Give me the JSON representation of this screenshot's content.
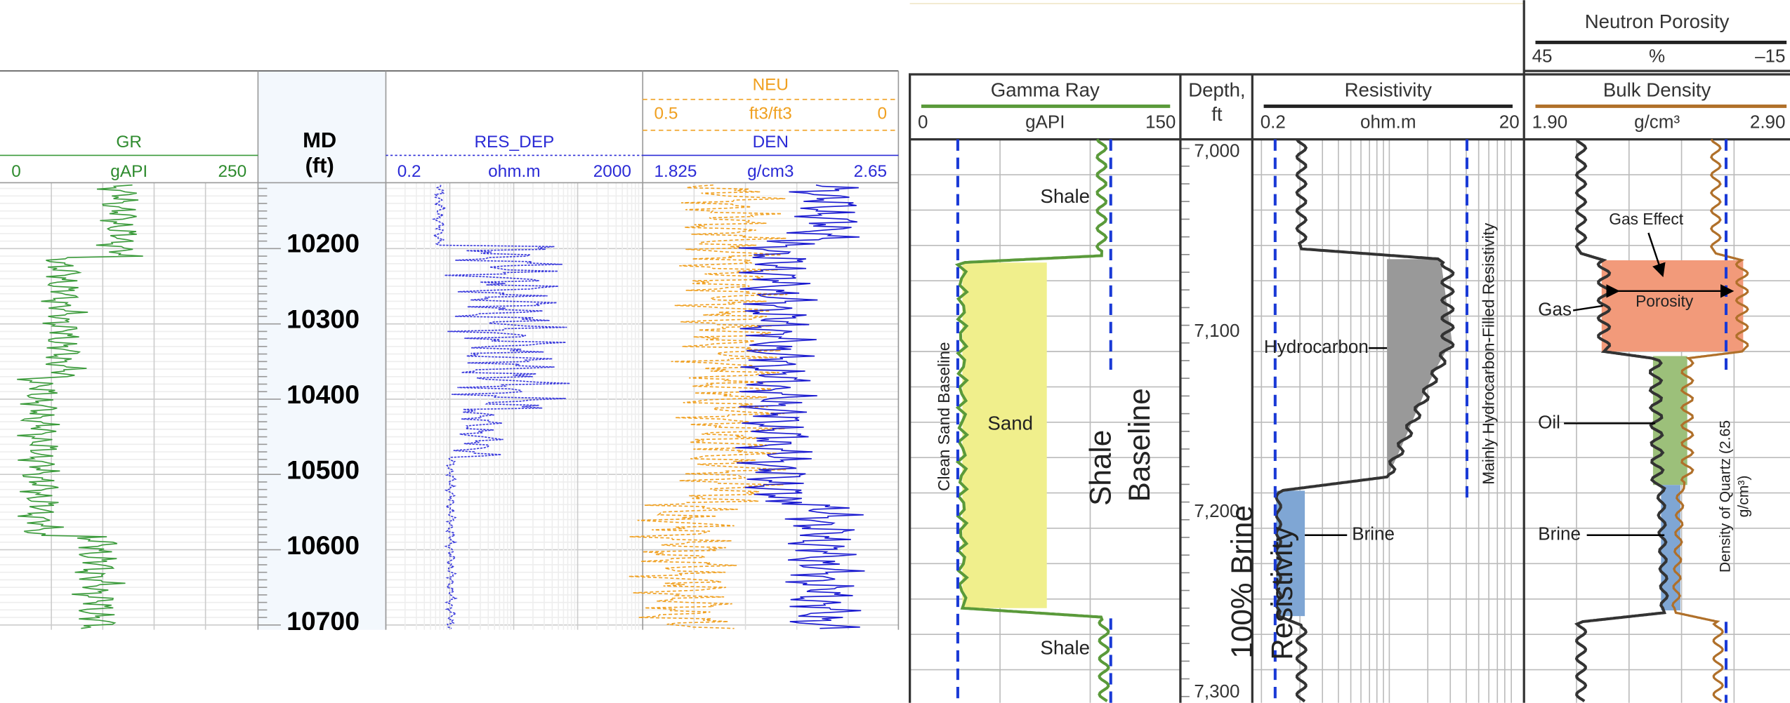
{
  "left_log": {
    "tracks": [
      {
        "name": "GR",
        "min": "0",
        "unit": "gAPI",
        "max": "250"
      },
      {
        "name": "RES_DEP",
        "min": "0.2",
        "unit": "ohm.m",
        "max": "2000"
      },
      {
        "name": "NEU",
        "min": "0.5",
        "unit": "ft3/ft3",
        "max": "0"
      },
      {
        "name": "DEN",
        "min": "1.825",
        "unit": "g/cm3",
        "max": "2.65"
      }
    ],
    "depth_header": {
      "title": "MD",
      "unit": "(ft)"
    },
    "depths": [
      10200,
      10300,
      10400,
      10500,
      10600,
      10700
    ]
  },
  "right_log": {
    "tracks": [
      {
        "name": "Gamma Ray",
        "min": "0",
        "unit": "gAPI",
        "max": "150"
      },
      {
        "name": "Resistivity",
        "min": "0.2",
        "unit": "ohm.m",
        "max": "20"
      },
      {
        "name": "Neutron Porosity",
        "min": "45",
        "unit": "%",
        "max": "–15"
      },
      {
        "name": "Bulk Density",
        "min": "1.90",
        "unit": "g/cm³",
        "max": "2.90"
      }
    ],
    "depth_header": {
      "title": "Depth,",
      "unit": "ft"
    },
    "depths": [
      "7,000",
      "7,100",
      "7,200",
      "7,300"
    ],
    "annotations": {
      "shale_top": "Shale",
      "sand": "Sand",
      "shale_bottom": "Shale",
      "clean_sand_baseline": "Clean Sand Baseline",
      "shale_baseline_1": "Shale",
      "shale_baseline_2": "Baseline",
      "hydrocarbon": "Hydrocarbon",
      "brine_res": "Brine",
      "mainly_hc": "Mainly Hydrocarbon-Filled Resistivity",
      "brine_res_1": "100% Brine",
      "brine_res_2": "Resistivity",
      "gas_effect": "Gas Effect",
      "porosity": "Porosity",
      "gas": "Gas",
      "oil": "Oil",
      "brine_den": "Brine",
      "quartz_1": "Density of Quartz (2.65",
      "quartz_2": "g/cm³)"
    }
  }
}
